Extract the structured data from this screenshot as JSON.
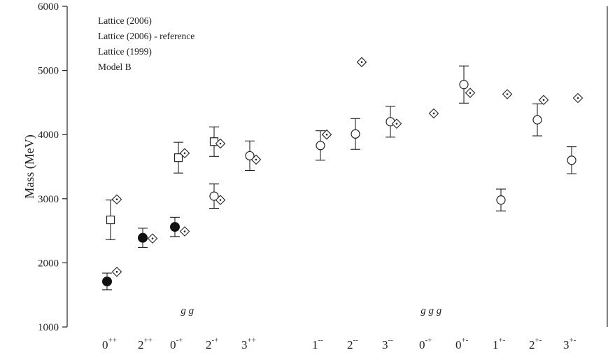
{
  "chart_data": {
    "type": "scatter",
    "ylabel": "Mass (MeV)",
    "ylim": [
      1000,
      6000
    ],
    "yticks": [
      1000,
      2000,
      3000,
      4000,
      5000,
      6000
    ],
    "categories": [
      {
        "base": "0",
        "sup": "++"
      },
      {
        "base": "2",
        "sup": "++"
      },
      {
        "base": "0",
        "sup": "-+"
      },
      {
        "base": "2",
        "sup": "-+"
      },
      {
        "base": "3",
        "sup": "++"
      },
      {
        "base": "1",
        "sup": "--"
      },
      {
        "base": "2",
        "sup": "--"
      },
      {
        "base": "3",
        "sup": "--"
      },
      {
        "base": "0",
        "sup": "-+"
      },
      {
        "base": "0",
        "sup": "+-"
      },
      {
        "base": "1",
        "sup": "+-"
      },
      {
        "base": "2",
        "sup": "+-"
      },
      {
        "base": "3",
        "sup": "+-"
      }
    ],
    "group_labels": [
      {
        "text": "g g",
        "category_index": 2.25
      },
      {
        "text": "g g g",
        "category_index": 8.1
      }
    ],
    "legend": [
      "Lattice (2006)",
      "Lattice (2006) - reference",
      "Lattice (1999)",
      "Model B"
    ],
    "series": [
      {
        "name": "Lattice (2006)",
        "marker": "circle-open",
        "points": [
          {
            "cat": 3,
            "y": 3040,
            "err": 190
          },
          {
            "cat": 4,
            "y": 3670,
            "err": 230
          },
          {
            "cat": 5,
            "y": 3830,
            "err": 230
          },
          {
            "cat": 6,
            "y": 4010,
            "err": 240
          },
          {
            "cat": 7,
            "y": 4200,
            "err": 240
          },
          {
            "cat": 9,
            "y": 4780,
            "err": 290
          },
          {
            "cat": 10,
            "y": 2980,
            "err": 170
          },
          {
            "cat": 11,
            "y": 4230,
            "err": 250
          },
          {
            "cat": 12,
            "y": 3600,
            "err": 210
          }
        ]
      },
      {
        "name": "Lattice (2006) - reference",
        "marker": "circle-filled",
        "points": [
          {
            "cat": 0,
            "y": 1710,
            "err": 130
          },
          {
            "cat": 1,
            "y": 2390,
            "err": 150
          },
          {
            "cat": 2,
            "y": 2560,
            "err": 150
          }
        ]
      },
      {
        "name": "Lattice (1999)",
        "marker": "square-open",
        "points": [
          {
            "cat": 0,
            "y": 2670,
            "err": 310
          },
          {
            "cat": 2,
            "y": 3640,
            "err": 240
          },
          {
            "cat": 3,
            "y": 3890,
            "err": 230
          }
        ]
      },
      {
        "name": "Model B",
        "marker": "diamond-dot",
        "points": [
          {
            "cat": 0,
            "y": 1860
          },
          {
            "cat": 0,
            "y": 2990
          },
          {
            "cat": 1,
            "y": 2380
          },
          {
            "cat": 2,
            "y": 2490
          },
          {
            "cat": 2,
            "y": 3710
          },
          {
            "cat": 3,
            "y": 2980
          },
          {
            "cat": 3,
            "y": 3860
          },
          {
            "cat": 4,
            "y": 3610
          },
          {
            "cat": 5,
            "y": 4000
          },
          {
            "cat": 6,
            "y": 5130
          },
          {
            "cat": 7,
            "y": 4170
          },
          {
            "cat": 8,
            "y": 4330
          },
          {
            "cat": 9,
            "y": 4650
          },
          {
            "cat": 10,
            "y": 4630
          },
          {
            "cat": 11,
            "y": 4540
          },
          {
            "cat": 12,
            "y": 4570
          }
        ]
      }
    ]
  }
}
